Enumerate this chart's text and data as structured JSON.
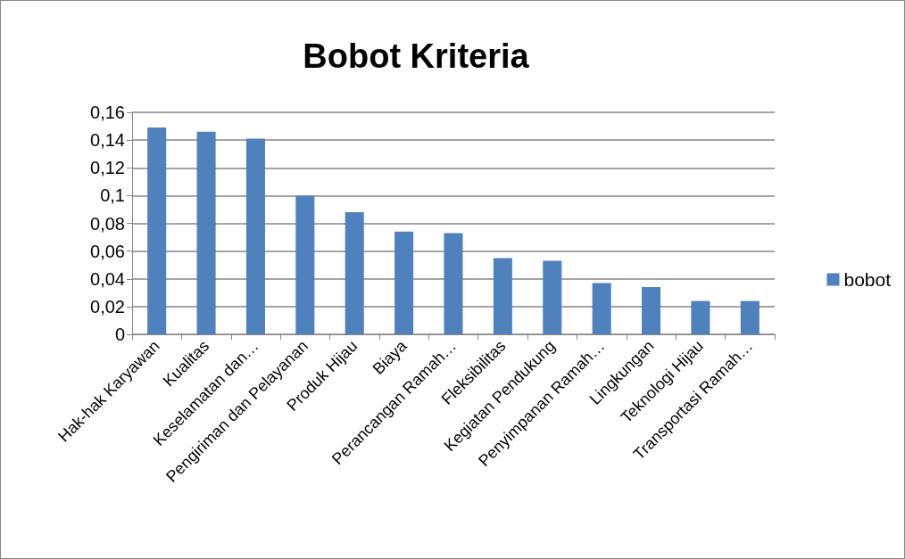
{
  "chart_data": {
    "type": "bar",
    "title": "Bobot Kriteria",
    "categories": [
      "Hak-hak Karyawan",
      "Kualitas",
      "Keselamatan dan…",
      "Pengiriman dan Pelayanan",
      "Produk Hijau",
      "Biaya",
      "Perancangan Ramah…",
      "Fleksibilitas",
      "Kegiatan Pendukung",
      "Penyimpanan Ramah…",
      "Lingkungan",
      "Teknologi Hijau",
      "Transportasi Ramah…"
    ],
    "series": [
      {
        "name": "bobot",
        "color": "#4f81bd",
        "values": [
          0.149,
          0.146,
          0.141,
          0.1,
          0.088,
          0.074,
          0.073,
          0.055,
          0.053,
          0.037,
          0.034,
          0.024,
          0.024
        ]
      }
    ],
    "ylim": [
      0,
      0.16
    ],
    "yticks": [
      0,
      {
        "value": 0.02,
        "label": "0,02"
      },
      {
        "value": 0.04,
        "label": "0,04"
      },
      {
        "value": 0.06,
        "label": "0,06"
      },
      {
        "value": 0.08,
        "label": "0,08"
      },
      {
        "value": 0.1,
        "label": "0,1"
      },
      {
        "value": 0.12,
        "label": "0,12"
      },
      {
        "value": 0.14,
        "label": "0,14"
      },
      {
        "value": 0.16,
        "label": "0,16"
      }
    ],
    "grid": "y",
    "legend": "right"
  }
}
